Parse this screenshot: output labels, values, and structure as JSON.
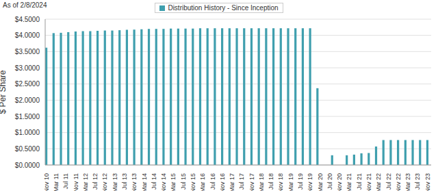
{
  "chart_data": {
    "type": "bar",
    "annotations": [
      "As of 2/8/2024"
    ],
    "y_label": "$ Per Share",
    "categories": [
      "Nov 10",
      null,
      null,
      null,
      "Mar 11",
      null,
      null,
      null,
      "Jul 11",
      null,
      null,
      null,
      "Nov 11",
      null,
      null,
      null,
      "Mar 12",
      null,
      null,
      null,
      "Jul 12",
      null,
      null,
      null,
      "Nov 12",
      null,
      null,
      null,
      "Mar 13",
      null,
      null,
      null,
      "Jul 13",
      null,
      null,
      null,
      "Nov 13",
      null,
      null,
      null,
      "Mar 14",
      null,
      null,
      null,
      "Jul 14",
      null,
      null,
      null,
      "Nov 14",
      null,
      null,
      null,
      "Mar 15",
      null,
      null,
      null,
      "Jul 15",
      null,
      null,
      null,
      "Nov 15",
      null,
      null,
      null,
      "Mar 16",
      null,
      null,
      null,
      "Jul 16",
      null,
      null,
      null,
      "Nov 16",
      null,
      null,
      null,
      "Mar 17",
      null,
      null,
      null,
      "Jul 17",
      null,
      null,
      null,
      "Nov 17",
      null,
      null,
      null,
      "Mar 18",
      null,
      null,
      null,
      "Jul 18",
      null,
      null,
      null,
      "Nov 18",
      null,
      null,
      null,
      "Mar 19",
      null,
      null,
      null,
      "Jul 19",
      null,
      null,
      null,
      "Nov 19",
      null,
      null,
      null,
      "Mar 20",
      null,
      null,
      null,
      "Jul 20",
      null,
      null,
      null,
      "Nov 20",
      null,
      null,
      null,
      "Mar 21",
      null,
      null,
      null,
      "Jul 21",
      null,
      null,
      null,
      "Nov 21",
      null,
      null,
      null,
      "Mar 22",
      null,
      null,
      null,
      "Jul 22",
      null,
      null,
      null,
      "Nov 22",
      null,
      null,
      null,
      "Mar 23",
      null,
      null,
      null,
      "Jul 23",
      null,
      null,
      null,
      "Nov 23",
      null
    ],
    "series": [
      {
        "name": "Distribution History - Since Inception",
        "color": "#3f9fae",
        "values": [
          3.62,
          null,
          null,
          4.07,
          null,
          null,
          4.08,
          null,
          null,
          4.1,
          null,
          null,
          4.12,
          null,
          null,
          4.13,
          null,
          null,
          4.13,
          null,
          null,
          4.14,
          null,
          null,
          4.15,
          null,
          null,
          4.15,
          null,
          null,
          4.16,
          null,
          null,
          4.17,
          null,
          null,
          4.18,
          null,
          null,
          4.19,
          null,
          null,
          4.2,
          null,
          null,
          4.2,
          null,
          null,
          4.2,
          null,
          null,
          4.21,
          null,
          null,
          4.21,
          null,
          null,
          4.21,
          null,
          null,
          4.21,
          null,
          null,
          4.22,
          null,
          null,
          4.22,
          null,
          null,
          4.22,
          null,
          null,
          4.22,
          null,
          null,
          4.22,
          null,
          null,
          4.22,
          null,
          null,
          4.22,
          null,
          null,
          4.22,
          null,
          null,
          4.22,
          null,
          null,
          4.22,
          null,
          null,
          4.22,
          null,
          null,
          4.22,
          null,
          null,
          4.22,
          null,
          null,
          4.22,
          null,
          null,
          4.22,
          null,
          null,
          4.22,
          null,
          null,
          2.37,
          null,
          null,
          null,
          null,
          null,
          0.3,
          null,
          null,
          null,
          null,
          null,
          0.3,
          null,
          null,
          0.32,
          null,
          null,
          0.36,
          null,
          null,
          0.37,
          null,
          null,
          0.57,
          null,
          null,
          0.77,
          null,
          null,
          0.77,
          null,
          null,
          0.77,
          null,
          null,
          0.77,
          null,
          null,
          0.77,
          null,
          null,
          0.77,
          null,
          null,
          0.77,
          null
        ]
      }
    ],
    "ylim": [
      0,
      4.5
    ],
    "yticks": [
      {
        "value": 0,
        "label": "$0.0000"
      },
      {
        "value": 0.5,
        "label": "$0.5000"
      },
      {
        "value": 1,
        "label": "$1.0000"
      },
      {
        "value": 1.5,
        "label": "$1.5000"
      },
      {
        "value": 2,
        "label": "$2.0000"
      },
      {
        "value": 2.5,
        "label": "$2.5000"
      },
      {
        "value": 3,
        "label": "$3.0000"
      },
      {
        "value": 3.5,
        "label": "$3.5000"
      },
      {
        "value": 4,
        "label": "$4.0000"
      },
      {
        "value": 4.5,
        "label": "$4.5000"
      }
    ],
    "grid": true,
    "legend": "top"
  }
}
